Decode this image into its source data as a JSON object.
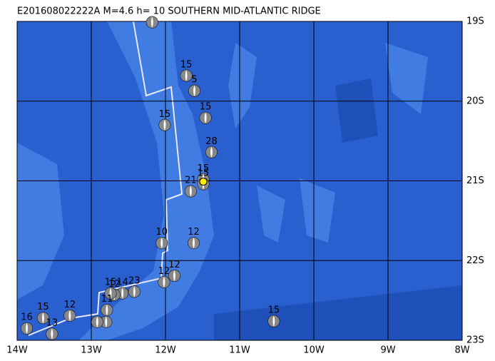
{
  "chart_data": {
    "type": "map",
    "title": "E201608022222A M=4.6 h= 10 SOUTHERN MID-ATLANTIC RIDGE",
    "xlim": [
      -14,
      -8
    ],
    "ylim": [
      -23,
      -19
    ],
    "xticks": [
      {
        "value": -14,
        "label": "14W"
      },
      {
        "value": -13,
        "label": "13W"
      },
      {
        "value": -12,
        "label": "12W"
      },
      {
        "value": -11,
        "label": "11W"
      },
      {
        "value": -10,
        "label": "10W"
      },
      {
        "value": -9,
        "label": "9W"
      },
      {
        "value": -8,
        "label": "8W"
      }
    ],
    "yticks": [
      {
        "value": -19,
        "label": "19S"
      },
      {
        "value": -20,
        "label": "20S"
      },
      {
        "value": -21,
        "label": "21S"
      },
      {
        "value": -22,
        "label": "22S"
      },
      {
        "value": -23,
        "label": "23S"
      }
    ],
    "grid": true,
    "color": "#2a5fd0",
    "events": [
      {
        "lon": -12.18,
        "lat": -19.01
      },
      {
        "lon": -11.72,
        "lat": -19.68,
        "label": "15"
      },
      {
        "lon": -11.61,
        "lat": -19.87,
        "label": "5"
      },
      {
        "lon": -12.01,
        "lat": -20.3,
        "label": "15"
      },
      {
        "lon": -11.46,
        "lat": -20.21,
        "label": "15"
      },
      {
        "lon": -11.38,
        "lat": -20.64,
        "label": "28"
      },
      {
        "lon": -11.49,
        "lat": -20.98,
        "label": "15"
      },
      {
        "lon": -11.49,
        "lat": -21.04,
        "label": "15"
      },
      {
        "lon": -11.66,
        "lat": -21.13,
        "label": "21"
      },
      {
        "lon": -12.05,
        "lat": -21.78,
        "label": "10"
      },
      {
        "lon": -11.62,
        "lat": -21.78,
        "label": "12"
      },
      {
        "lon": -12.02,
        "lat": -22.27,
        "label": "12"
      },
      {
        "lon": -11.88,
        "lat": -22.19,
        "label": "12"
      },
      {
        "lon": -12.42,
        "lat": -22.39,
        "label": "23"
      },
      {
        "lon": -12.58,
        "lat": -22.41,
        "label": "14"
      },
      {
        "lon": -12.69,
        "lat": -22.43,
        "label": "12"
      },
      {
        "lon": -12.74,
        "lat": -22.41,
        "label": "15"
      },
      {
        "lon": -12.79,
        "lat": -22.62,
        "label": "11"
      },
      {
        "lon": -12.8,
        "lat": -22.77
      },
      {
        "lon": -12.92,
        "lat": -22.77
      },
      {
        "lon": -13.29,
        "lat": -22.69,
        "label": "12"
      },
      {
        "lon": -13.65,
        "lat": -22.72,
        "label": "15"
      },
      {
        "lon": -13.87,
        "lat": -22.85,
        "label": "16"
      },
      {
        "lon": -13.53,
        "lat": -22.92,
        "label": "13"
      },
      {
        "lon": -10.54,
        "lat": -22.76,
        "label": "15"
      }
    ],
    "main_event": {
      "lon": -11.49,
      "lat": -21.01,
      "color": "#ffee00"
    }
  }
}
